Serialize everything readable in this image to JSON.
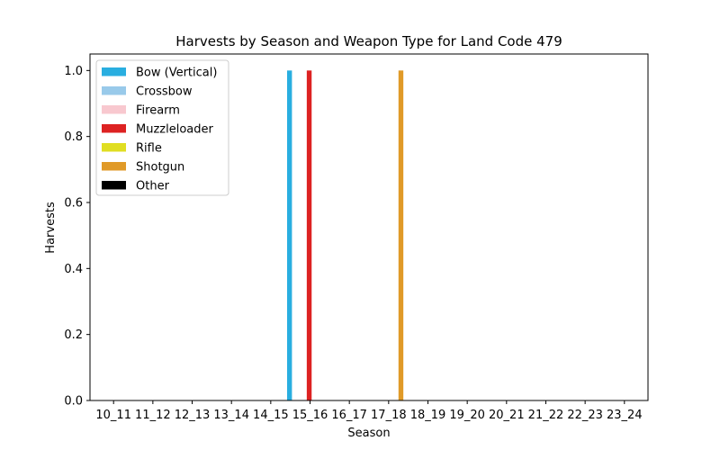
{
  "chart_data": {
    "type": "bar",
    "title": "Harvests by Season and Weapon Type for Land Code 479",
    "xlabel": "Season",
    "ylabel": "Harvests",
    "ylim": [
      0,
      1.05
    ],
    "yticks": [
      0.0,
      0.2,
      0.4,
      0.6,
      0.8,
      1.0
    ],
    "ytick_labels": [
      "0.0",
      "0.2",
      "0.4",
      "0.6",
      "0.8",
      "1.0"
    ],
    "grid": false,
    "legend_position": "top-left",
    "categories": [
      "10_11",
      "11_12",
      "12_13",
      "13_14",
      "14_15",
      "15_16",
      "16_17",
      "17_18",
      "18_19",
      "19_20",
      "20_21",
      "21_22",
      "22_23",
      "23_24"
    ],
    "series": [
      {
        "name": "Bow (Vertical)",
        "color": "#29aee0",
        "values": [
          0,
          0,
          0,
          0,
          0,
          1,
          0,
          0,
          0,
          0,
          0,
          0,
          0,
          0
        ]
      },
      {
        "name": "Crossbow",
        "color": "#99caea",
        "values": [
          0,
          0,
          0,
          0,
          0,
          0,
          0,
          0,
          0,
          0,
          0,
          0,
          0,
          0
        ]
      },
      {
        "name": "Firearm",
        "color": "#f8c8cf",
        "values": [
          0,
          0,
          0,
          0,
          0,
          0,
          0,
          0,
          0,
          0,
          0,
          0,
          0,
          0
        ]
      },
      {
        "name": "Muzzleloader",
        "color": "#dd2222",
        "values": [
          0,
          0,
          0,
          0,
          0,
          1,
          0,
          0,
          0,
          0,
          0,
          0,
          0,
          0
        ]
      },
      {
        "name": "Rifle",
        "color": "#e0de22",
        "values": [
          0,
          0,
          0,
          0,
          0,
          0,
          0,
          0,
          0,
          0,
          0,
          0,
          0,
          0
        ]
      },
      {
        "name": "Shotgun",
        "color": "#e09a28",
        "values": [
          0,
          0,
          0,
          0,
          0,
          0,
          0,
          1,
          0,
          0,
          0,
          0,
          0,
          0
        ]
      },
      {
        "name": "Other",
        "color": "#000000",
        "values": [
          0,
          0,
          0,
          0,
          0,
          0,
          0,
          0,
          0,
          0,
          0,
          0,
          0,
          0
        ]
      }
    ]
  }
}
